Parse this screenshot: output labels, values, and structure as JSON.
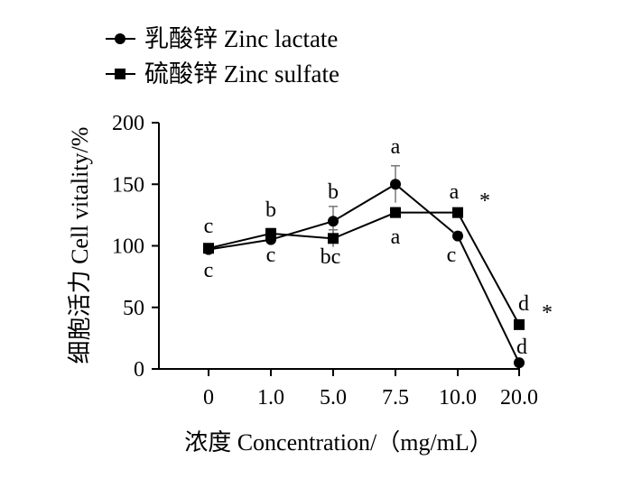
{
  "chart_data": {
    "type": "line",
    "categories": [
      "0",
      "1.0",
      "5.0",
      "7.5",
      "10.0",
      "20.0"
    ],
    "xlabel": "浓度  Concentration/（mg/mL）",
    "ylabel": "细胞活力 Cell vitality/%",
    "ylim": [
      0,
      200
    ],
    "yticks": [
      "0",
      "50",
      "100",
      "150",
      "200"
    ],
    "legend_position": "top-left",
    "grid": false,
    "series": [
      {
        "name": "乳酸锌 Zinc lactate",
        "marker": "circle",
        "values": [
          97,
          105,
          120,
          150,
          108,
          5
        ],
        "errors": [
          2,
          4,
          12,
          15,
          3,
          1
        ],
        "labels": [
          "c",
          "c",
          "b",
          "a",
          "c",
          "d"
        ]
      },
      {
        "name": "硫酸锌 Zinc sulfate",
        "marker": "square",
        "values": [
          98,
          110,
          106,
          127,
          127,
          36
        ],
        "errors": [
          3,
          4,
          7,
          4,
          3,
          2
        ],
        "labels": [
          "c",
          "b",
          "bc",
          "a",
          "a",
          "d"
        ]
      }
    ],
    "annotations": [
      "*",
      "*"
    ]
  }
}
